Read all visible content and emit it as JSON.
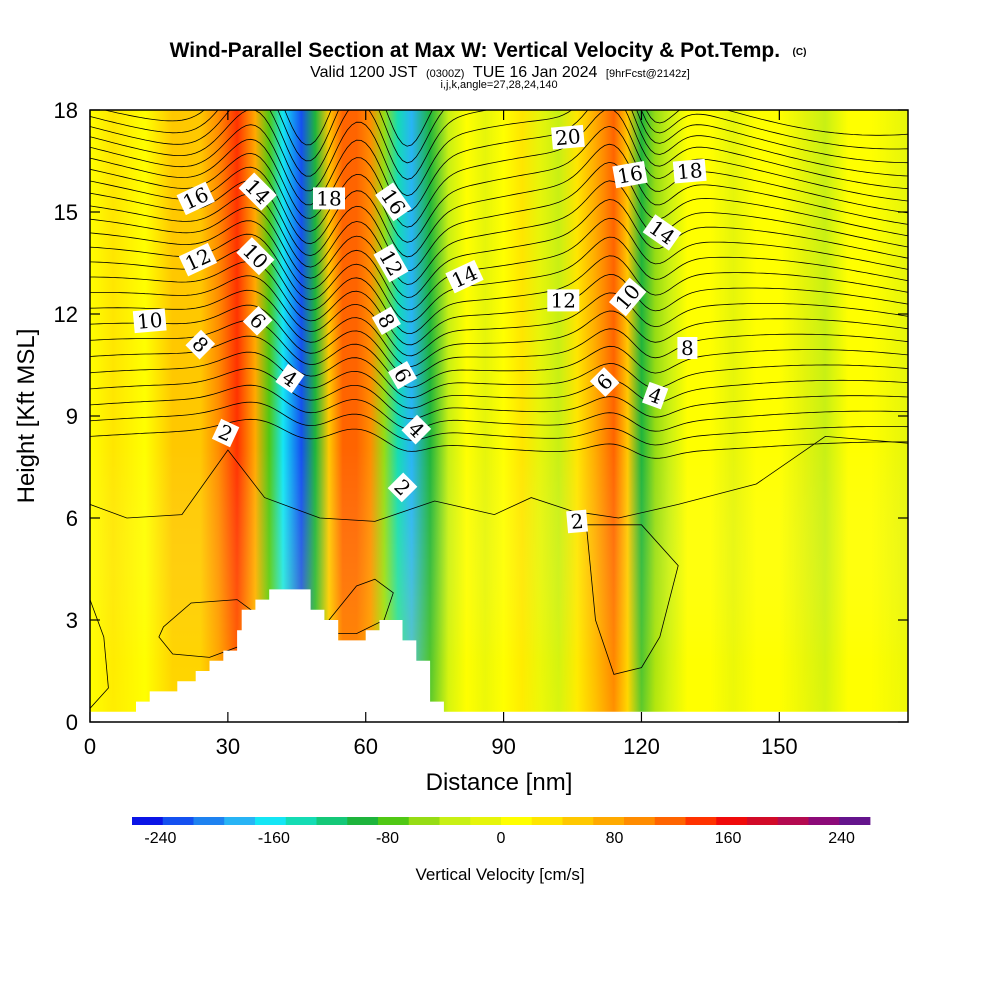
{
  "chart_data": {
    "type": "heatmap",
    "title": "Wind-Parallel Section at Max W: Vertical Velocity & Pot.Temp.",
    "title_suffix": "(C)",
    "subtitle_parts": [
      "Valid 1200 JST",
      "(0300Z)",
      "TUE 16 Jan 2024",
      "[9hrFcst@2142z]"
    ],
    "subtitle2": "i,j,k,angle=27,28,24,140",
    "xlabel": "Distance [nm]",
    "ylabel": "Height [Kft MSL]",
    "xlim": [
      0,
      178
    ],
    "ylim": [
      0,
      18
    ],
    "x_ticks": [
      "0",
      "30",
      "60",
      "90",
      "120",
      "150"
    ],
    "y_ticks": [
      "0",
      "3",
      "6",
      "9",
      "12",
      "15",
      "18"
    ],
    "colorbar": {
      "label": "Vertical Velocity [cm/s]",
      "range": [
        -260,
        260
      ],
      "tick_values": [
        -240,
        -160,
        -80,
        0,
        80,
        160,
        240
      ],
      "tick_labels": [
        "-240",
        "-160",
        "-80",
        "0",
        "80",
        "160",
        "240"
      ],
      "colors": [
        "#0a14e6",
        "#1450f0",
        "#1e82f0",
        "#28b4f5",
        "#14e6f5",
        "#14dcb4",
        "#14c878",
        "#1eb43c",
        "#50c814",
        "#96dc14",
        "#c8f014",
        "#e6f50a",
        "#ffff00",
        "#ffe600",
        "#ffc800",
        "#ffaa00",
        "#ff8c00",
        "#ff6400",
        "#ff3200",
        "#f00a0a",
        "#d20a28",
        "#b40a50",
        "#8c0a78",
        "#64148c"
      ]
    },
    "w_columns": [
      {
        "x": 0,
        "w": 0
      },
      {
        "x": 5,
        "w": 25
      },
      {
        "x": 12,
        "w": 10
      },
      {
        "x": 18,
        "w": 45
      },
      {
        "x": 24,
        "w": 55
      },
      {
        "x": 28,
        "w": 95
      },
      {
        "x": 32,
        "w": 130
      },
      {
        "x": 36,
        "w": 65
      },
      {
        "x": 39,
        "w": -80
      },
      {
        "x": 42,
        "w": -160
      },
      {
        "x": 46,
        "w": -225
      },
      {
        "x": 49,
        "w": -90
      },
      {
        "x": 52,
        "w": 60
      },
      {
        "x": 55,
        "w": 110
      },
      {
        "x": 58,
        "w": 125
      },
      {
        "x": 61,
        "w": 90
      },
      {
        "x": 64,
        "w": -60
      },
      {
        "x": 67,
        "w": -140
      },
      {
        "x": 70,
        "w": -180
      },
      {
        "x": 74,
        "w": -90
      },
      {
        "x": 78,
        "w": -30
      },
      {
        "x": 82,
        "w": 10
      },
      {
        "x": 86,
        "w": -15
      },
      {
        "x": 90,
        "w": 15
      },
      {
        "x": 94,
        "w": 25
      },
      {
        "x": 98,
        "w": -10
      },
      {
        "x": 102,
        "w": -30
      },
      {
        "x": 106,
        "w": 40
      },
      {
        "x": 110,
        "w": 80
      },
      {
        "x": 114,
        "w": 110
      },
      {
        "x": 117,
        "w": 60
      },
      {
        "x": 120,
        "w": -100
      },
      {
        "x": 123,
        "w": -60
      },
      {
        "x": 126,
        "w": -25
      },
      {
        "x": 130,
        "w": 10
      },
      {
        "x": 135,
        "w": 20
      },
      {
        "x": 140,
        "w": -15
      },
      {
        "x": 145,
        "w": 5
      },
      {
        "x": 150,
        "w": 15
      },
      {
        "x": 155,
        "w": -10
      },
      {
        "x": 160,
        "w": -25
      },
      {
        "x": 165,
        "w": 10
      },
      {
        "x": 170,
        "w": 5
      },
      {
        "x": 178,
        "w": -10
      }
    ],
    "terrain": [
      [
        0,
        0.3
      ],
      [
        10,
        0.3
      ],
      [
        10,
        0.6
      ],
      [
        13,
        0.6
      ],
      [
        13,
        0.9
      ],
      [
        19,
        0.9
      ],
      [
        19,
        1.2
      ],
      [
        23,
        1.2
      ],
      [
        23,
        1.5
      ],
      [
        26,
        1.5
      ],
      [
        26,
        1.8
      ],
      [
        29,
        1.8
      ],
      [
        29,
        2.1
      ],
      [
        32,
        2.1
      ],
      [
        32,
        2.7
      ],
      [
        33,
        2.7
      ],
      [
        33,
        3.3
      ],
      [
        36,
        3.3
      ],
      [
        36,
        3.6
      ],
      [
        39,
        3.6
      ],
      [
        39,
        3.9
      ],
      [
        48,
        3.9
      ],
      [
        48,
        3.3
      ],
      [
        51,
        3.3
      ],
      [
        51,
        3.0
      ],
      [
        54,
        3.0
      ],
      [
        54,
        2.4
      ],
      [
        60,
        2.4
      ],
      [
        60,
        2.7
      ],
      [
        63,
        2.7
      ],
      [
        63,
        3.0
      ],
      [
        68,
        3.0
      ],
      [
        68,
        2.4
      ],
      [
        71,
        2.4
      ],
      [
        71,
        1.8
      ],
      [
        74,
        1.8
      ],
      [
        74,
        0.6
      ],
      [
        77,
        0.6
      ],
      [
        77,
        0.3
      ],
      [
        178,
        0.3
      ]
    ],
    "theta_contours": {
      "levels_labeled": [
        "2",
        "4",
        "6",
        "8",
        "10",
        "12",
        "14",
        "16",
        "18",
        "20"
      ],
      "labels": [
        {
          "text": "2",
          "x": 29.5,
          "y": 8.5,
          "angle": 25
        },
        {
          "text": "2",
          "x": 68,
          "y": 6.9,
          "angle": 45
        },
        {
          "text": "2",
          "x": 106,
          "y": 5.9,
          "angle": -5
        },
        {
          "text": "4",
          "x": 43.5,
          "y": 10.1,
          "angle": 35
        },
        {
          "text": "4",
          "x": 71,
          "y": 8.6,
          "angle": 45
        },
        {
          "text": "4",
          "x": 123,
          "y": 9.6,
          "angle": 20
        },
        {
          "text": "6",
          "x": 36.5,
          "y": 11.8,
          "angle": 45
        },
        {
          "text": "6",
          "x": 68,
          "y": 10.2,
          "angle": 60
        },
        {
          "text": "6",
          "x": 112,
          "y": 10.0,
          "angle": -45
        },
        {
          "text": "8",
          "x": 24,
          "y": 11.1,
          "angle": 45
        },
        {
          "text": "8",
          "x": 64.5,
          "y": 11.8,
          "angle": 60
        },
        {
          "text": "8",
          "x": 130,
          "y": 11.0,
          "angle": 0
        },
        {
          "text": "10",
          "x": 13,
          "y": 11.8,
          "angle": -5
        },
        {
          "text": "10",
          "x": 36,
          "y": 13.7,
          "angle": 45
        },
        {
          "text": "10",
          "x": 117,
          "y": 12.5,
          "angle": -50
        },
        {
          "text": "12",
          "x": 23.5,
          "y": 13.6,
          "angle": -25
        },
        {
          "text": "12",
          "x": 65.5,
          "y": 13.5,
          "angle": 60
        },
        {
          "text": "12",
          "x": 103,
          "y": 12.4,
          "angle": 0
        },
        {
          "text": "14",
          "x": 36.5,
          "y": 15.6,
          "angle": 45
        },
        {
          "text": "14",
          "x": 81.5,
          "y": 13.1,
          "angle": -25
        },
        {
          "text": "14",
          "x": 124.5,
          "y": 14.4,
          "angle": 35
        },
        {
          "text": "16",
          "x": 23,
          "y": 15.4,
          "angle": -25
        },
        {
          "text": "16",
          "x": 66,
          "y": 15.3,
          "angle": 55
        },
        {
          "text": "16",
          "x": 117.5,
          "y": 16.1,
          "angle": -10
        },
        {
          "text": "18",
          "x": 52,
          "y": 15.4,
          "angle": 0
        },
        {
          "text": "18",
          "x": 130.5,
          "y": 16.2,
          "angle": -5
        },
        {
          "text": "20",
          "x": 104,
          "y": 17.2,
          "angle": -5
        }
      ]
    }
  }
}
